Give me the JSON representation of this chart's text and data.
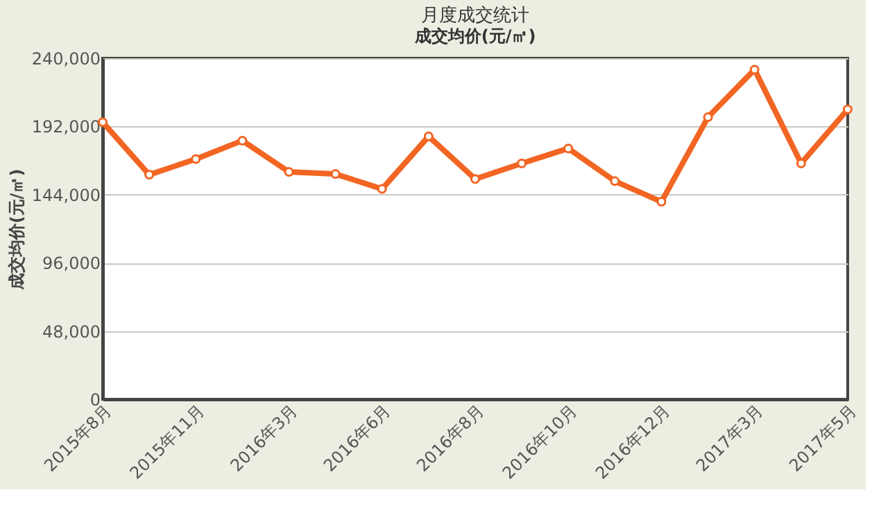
{
  "chart_data": {
    "type": "line",
    "title": "月度成交统计",
    "subtitle": "成交均价(元/㎡)",
    "ylabel": "成交均价(元/㎡)",
    "categories": [
      "2015年8月",
      null,
      "2015年11月",
      null,
      "2016年3月",
      null,
      "2016年6月",
      null,
      "2016年8月",
      null,
      "2016年10月",
      null,
      "2016年12月",
      null,
      "2017年3月",
      null,
      "2017年5月"
    ],
    "series": [
      {
        "color": "#f26522",
        "values": [
          195000,
          158000,
          169000,
          182000,
          160000,
          158500,
          148000,
          185000,
          155000,
          166000,
          176500,
          153500,
          139000,
          198500,
          232000,
          166000,
          204000
        ]
      }
    ],
    "ylim": [
      0,
      240000
    ],
    "yticks": [
      {
        "value": 0,
        "label": "0"
      },
      {
        "value": 48000,
        "label": "48,000"
      },
      {
        "value": 96000,
        "label": "96,000"
      },
      {
        "value": 144000,
        "label": "144,000"
      },
      {
        "value": 192000,
        "label": "192,000"
      },
      {
        "value": 240000,
        "label": "240,000"
      }
    ],
    "grid": "y",
    "marker": "circle",
    "line_style": "solid",
    "legend": false
  }
}
